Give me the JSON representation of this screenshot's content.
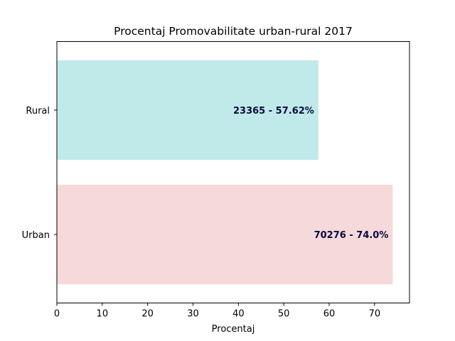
{
  "chart_data": {
    "type": "bar",
    "orientation": "horizontal",
    "title": "Procentaj Promovabilitate urban-rural 2017",
    "xlabel": "Procentaj",
    "ylabel": "",
    "categories": [
      "Urban",
      "Rural"
    ],
    "values": [
      74.0,
      57.62
    ],
    "data_labels": [
      "70276 - 74.0%",
      "23365 - 57.62%"
    ],
    "bar_colors": [
      "#f5d9db",
      "#bfeae9"
    ],
    "label_color": "#0a0a3c",
    "xlim": [
      0,
      77.7
    ],
    "xticks": [
      0,
      10,
      20,
      30,
      40,
      50,
      60,
      70
    ],
    "grid": false,
    "legend": "none"
  }
}
